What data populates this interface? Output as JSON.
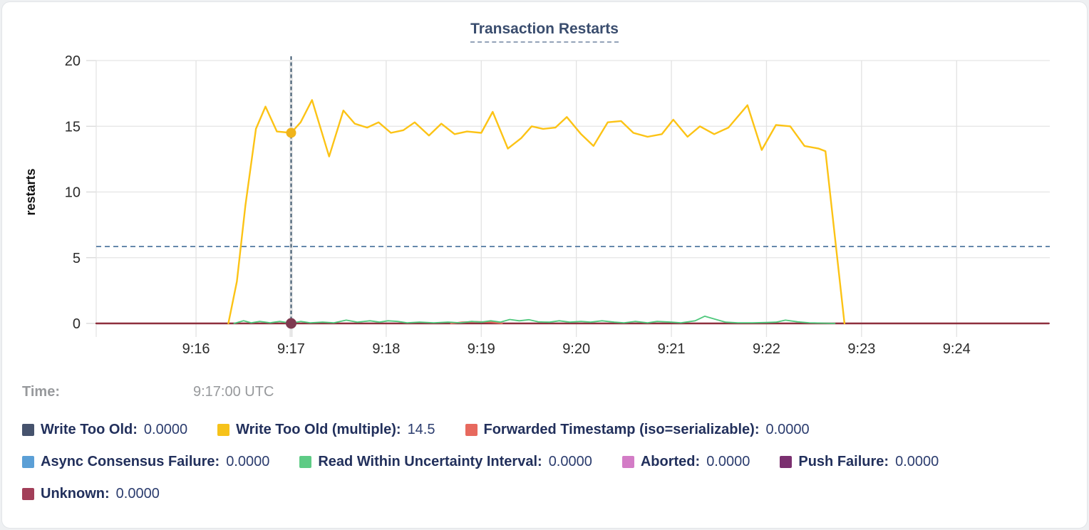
{
  "title": {
    "text": "Transaction Restarts"
  },
  "time_row": {
    "label": "Time:",
    "value": "9:17:00 UTC"
  },
  "legend": {
    "rows": [
      [
        {
          "key": "write-too-old",
          "label": "Write Too Old:",
          "value": "0.0000",
          "color": "#46536d"
        },
        {
          "key": "write-too-old-multiple",
          "label": "Write Too Old (multiple):",
          "value": "14.5",
          "color": "#f6c21a"
        },
        {
          "key": "forwarded-timestamp",
          "label": "Forwarded Timestamp (iso=serializable):",
          "value": "0.0000",
          "color": "#e7695e"
        }
      ],
      [
        {
          "key": "async-consensus-failure",
          "label": "Async Consensus Failure:",
          "value": "0.0000",
          "color": "#5b9fd6"
        },
        {
          "key": "read-within-uncertainty-interval",
          "label": "Read Within Uncertainty Interval:",
          "value": "0.0000",
          "color": "#5ecb85"
        },
        {
          "key": "aborted",
          "label": "Aborted:",
          "value": "0.0000",
          "color": "#d37cc6"
        },
        {
          "key": "push-failure",
          "label": "Push Failure:",
          "value": "0.0000",
          "color": "#7b3070"
        }
      ],
      [
        {
          "key": "unknown",
          "label": "Unknown:",
          "value": "0.0000",
          "color": "#a23f59"
        }
      ]
    ]
  },
  "chart_data": {
    "type": "line",
    "title": "Transaction Restarts",
    "xlabel": "",
    "ylabel": "restarts",
    "x_axis": {
      "unit": "time (UTC)",
      "range_minutes": [
        14.95,
        24.98
      ],
      "ticks": [
        {
          "value": 16,
          "label": "9:16"
        },
        {
          "value": 17,
          "label": "9:17"
        },
        {
          "value": 18,
          "label": "9:18"
        },
        {
          "value": 19,
          "label": "9:19"
        },
        {
          "value": 20,
          "label": "9:20"
        },
        {
          "value": 21,
          "label": "9:21"
        },
        {
          "value": 22,
          "label": "9:22"
        },
        {
          "value": 23,
          "label": "9:23"
        },
        {
          "value": 24,
          "label": "9:24"
        }
      ]
    },
    "y_axis": {
      "range": [
        0,
        20
      ],
      "ticks": [
        0,
        5,
        10,
        15,
        20
      ]
    },
    "grid": true,
    "average_line": {
      "value": 5.85,
      "style": "dashed",
      "color": "#5c80a6"
    },
    "crosshair": {
      "x": 17,
      "time": "9:17:00 UTC",
      "color": "#2e4a63"
    },
    "hover_points": [
      {
        "series": "Write Too Old (multiple)",
        "x": 17,
        "y": 14.5,
        "color": "#f0b41b",
        "r": 7
      },
      {
        "series": "Unknown",
        "x": 17,
        "y": 0,
        "color": "#7e3a50",
        "r": 7.5
      }
    ],
    "series": [
      {
        "name": "Unknown",
        "color": "#8e2f3d",
        "width": 2.4,
        "points": [
          [
            14.95,
            0
          ],
          [
            24.97,
            0
          ]
        ]
      },
      {
        "name": "Forwarded Timestamp (iso=serializable)",
        "color": "#e5685c",
        "width": 2,
        "points": [
          [
            18.68,
            0
          ],
          [
            18.8,
            0.1
          ],
          [
            18.95,
            0.13
          ],
          [
            19.1,
            0.1
          ],
          [
            19.22,
            0
          ]
        ]
      },
      {
        "name": "Read Within Uncertainty Interval",
        "color": "#4ec87c",
        "width": 1.8,
        "points": [
          [
            16.4,
            0
          ],
          [
            16.5,
            0.2
          ],
          [
            16.58,
            0.05
          ],
          [
            16.67,
            0.15
          ],
          [
            16.78,
            0.05
          ],
          [
            16.88,
            0.15
          ],
          [
            17.0,
            0.02
          ],
          [
            17.1,
            0.15
          ],
          [
            17.2,
            0.05
          ],
          [
            17.33,
            0.1
          ],
          [
            17.45,
            0.05
          ],
          [
            17.58,
            0.25
          ],
          [
            17.7,
            0.1
          ],
          [
            17.83,
            0.2
          ],
          [
            17.93,
            0.1
          ],
          [
            18.02,
            0.2
          ],
          [
            18.12,
            0.15
          ],
          [
            18.22,
            0.05
          ],
          [
            18.35,
            0.1
          ],
          [
            18.5,
            0.05
          ],
          [
            18.65,
            0.1
          ],
          [
            18.78,
            0.05
          ],
          [
            18.9,
            0.15
          ],
          [
            19.0,
            0.1
          ],
          [
            19.1,
            0.2
          ],
          [
            19.2,
            0.1
          ],
          [
            19.3,
            0.3
          ],
          [
            19.4,
            0.2
          ],
          [
            19.5,
            0.28
          ],
          [
            19.6,
            0.12
          ],
          [
            19.72,
            0.1
          ],
          [
            19.82,
            0.2
          ],
          [
            19.93,
            0.1
          ],
          [
            20.05,
            0.15
          ],
          [
            20.15,
            0.1
          ],
          [
            20.27,
            0.2
          ],
          [
            20.4,
            0.1
          ],
          [
            20.5,
            0.05
          ],
          [
            20.62,
            0.15
          ],
          [
            20.75,
            0.05
          ],
          [
            20.85,
            0.15
          ],
          [
            21.0,
            0.1
          ],
          [
            21.1,
            0.05
          ],
          [
            21.25,
            0.2
          ],
          [
            21.35,
            0.55
          ],
          [
            21.47,
            0.3
          ],
          [
            21.57,
            0.1
          ],
          [
            21.7,
            0.05
          ],
          [
            21.85,
            0.05
          ],
          [
            22.0,
            0.07
          ],
          [
            22.1,
            0.1
          ],
          [
            22.2,
            0.25
          ],
          [
            22.33,
            0.12
          ],
          [
            22.45,
            0.05
          ],
          [
            22.6,
            0.02
          ],
          [
            22.72,
            0
          ]
        ]
      },
      {
        "name": "Write Too Old (multiple)",
        "color": "#fcc315",
        "width": 2.4,
        "points": [
          [
            16.34,
            0
          ],
          [
            16.43,
            3.2
          ],
          [
            16.52,
            9.0
          ],
          [
            16.63,
            14.8
          ],
          [
            16.73,
            16.5
          ],
          [
            16.85,
            14.6
          ],
          [
            17.0,
            14.5
          ],
          [
            17.1,
            15.3
          ],
          [
            17.22,
            17.0
          ],
          [
            17.4,
            12.7
          ],
          [
            17.55,
            16.2
          ],
          [
            17.67,
            15.2
          ],
          [
            17.8,
            14.9
          ],
          [
            17.92,
            15.3
          ],
          [
            18.05,
            14.5
          ],
          [
            18.18,
            14.7
          ],
          [
            18.3,
            15.3
          ],
          [
            18.45,
            14.3
          ],
          [
            18.58,
            15.2
          ],
          [
            18.72,
            14.4
          ],
          [
            18.85,
            14.6
          ],
          [
            19.0,
            14.5
          ],
          [
            19.12,
            16.1
          ],
          [
            19.28,
            13.3
          ],
          [
            19.42,
            14.1
          ],
          [
            19.53,
            15.0
          ],
          [
            19.65,
            14.8
          ],
          [
            19.78,
            14.9
          ],
          [
            19.9,
            15.7
          ],
          [
            20.05,
            14.4
          ],
          [
            20.18,
            13.5
          ],
          [
            20.33,
            15.3
          ],
          [
            20.47,
            15.4
          ],
          [
            20.6,
            14.5
          ],
          [
            20.75,
            14.2
          ],
          [
            20.9,
            14.4
          ],
          [
            21.02,
            15.5
          ],
          [
            21.17,
            14.2
          ],
          [
            21.3,
            15.0
          ],
          [
            21.45,
            14.4
          ],
          [
            21.6,
            14.9
          ],
          [
            21.8,
            16.6
          ],
          [
            21.95,
            13.2
          ],
          [
            22.1,
            15.1
          ],
          [
            22.25,
            15.0
          ],
          [
            22.4,
            13.5
          ],
          [
            22.55,
            13.3
          ],
          [
            22.62,
            13.1
          ],
          [
            22.82,
            0
          ]
        ]
      }
    ]
  }
}
